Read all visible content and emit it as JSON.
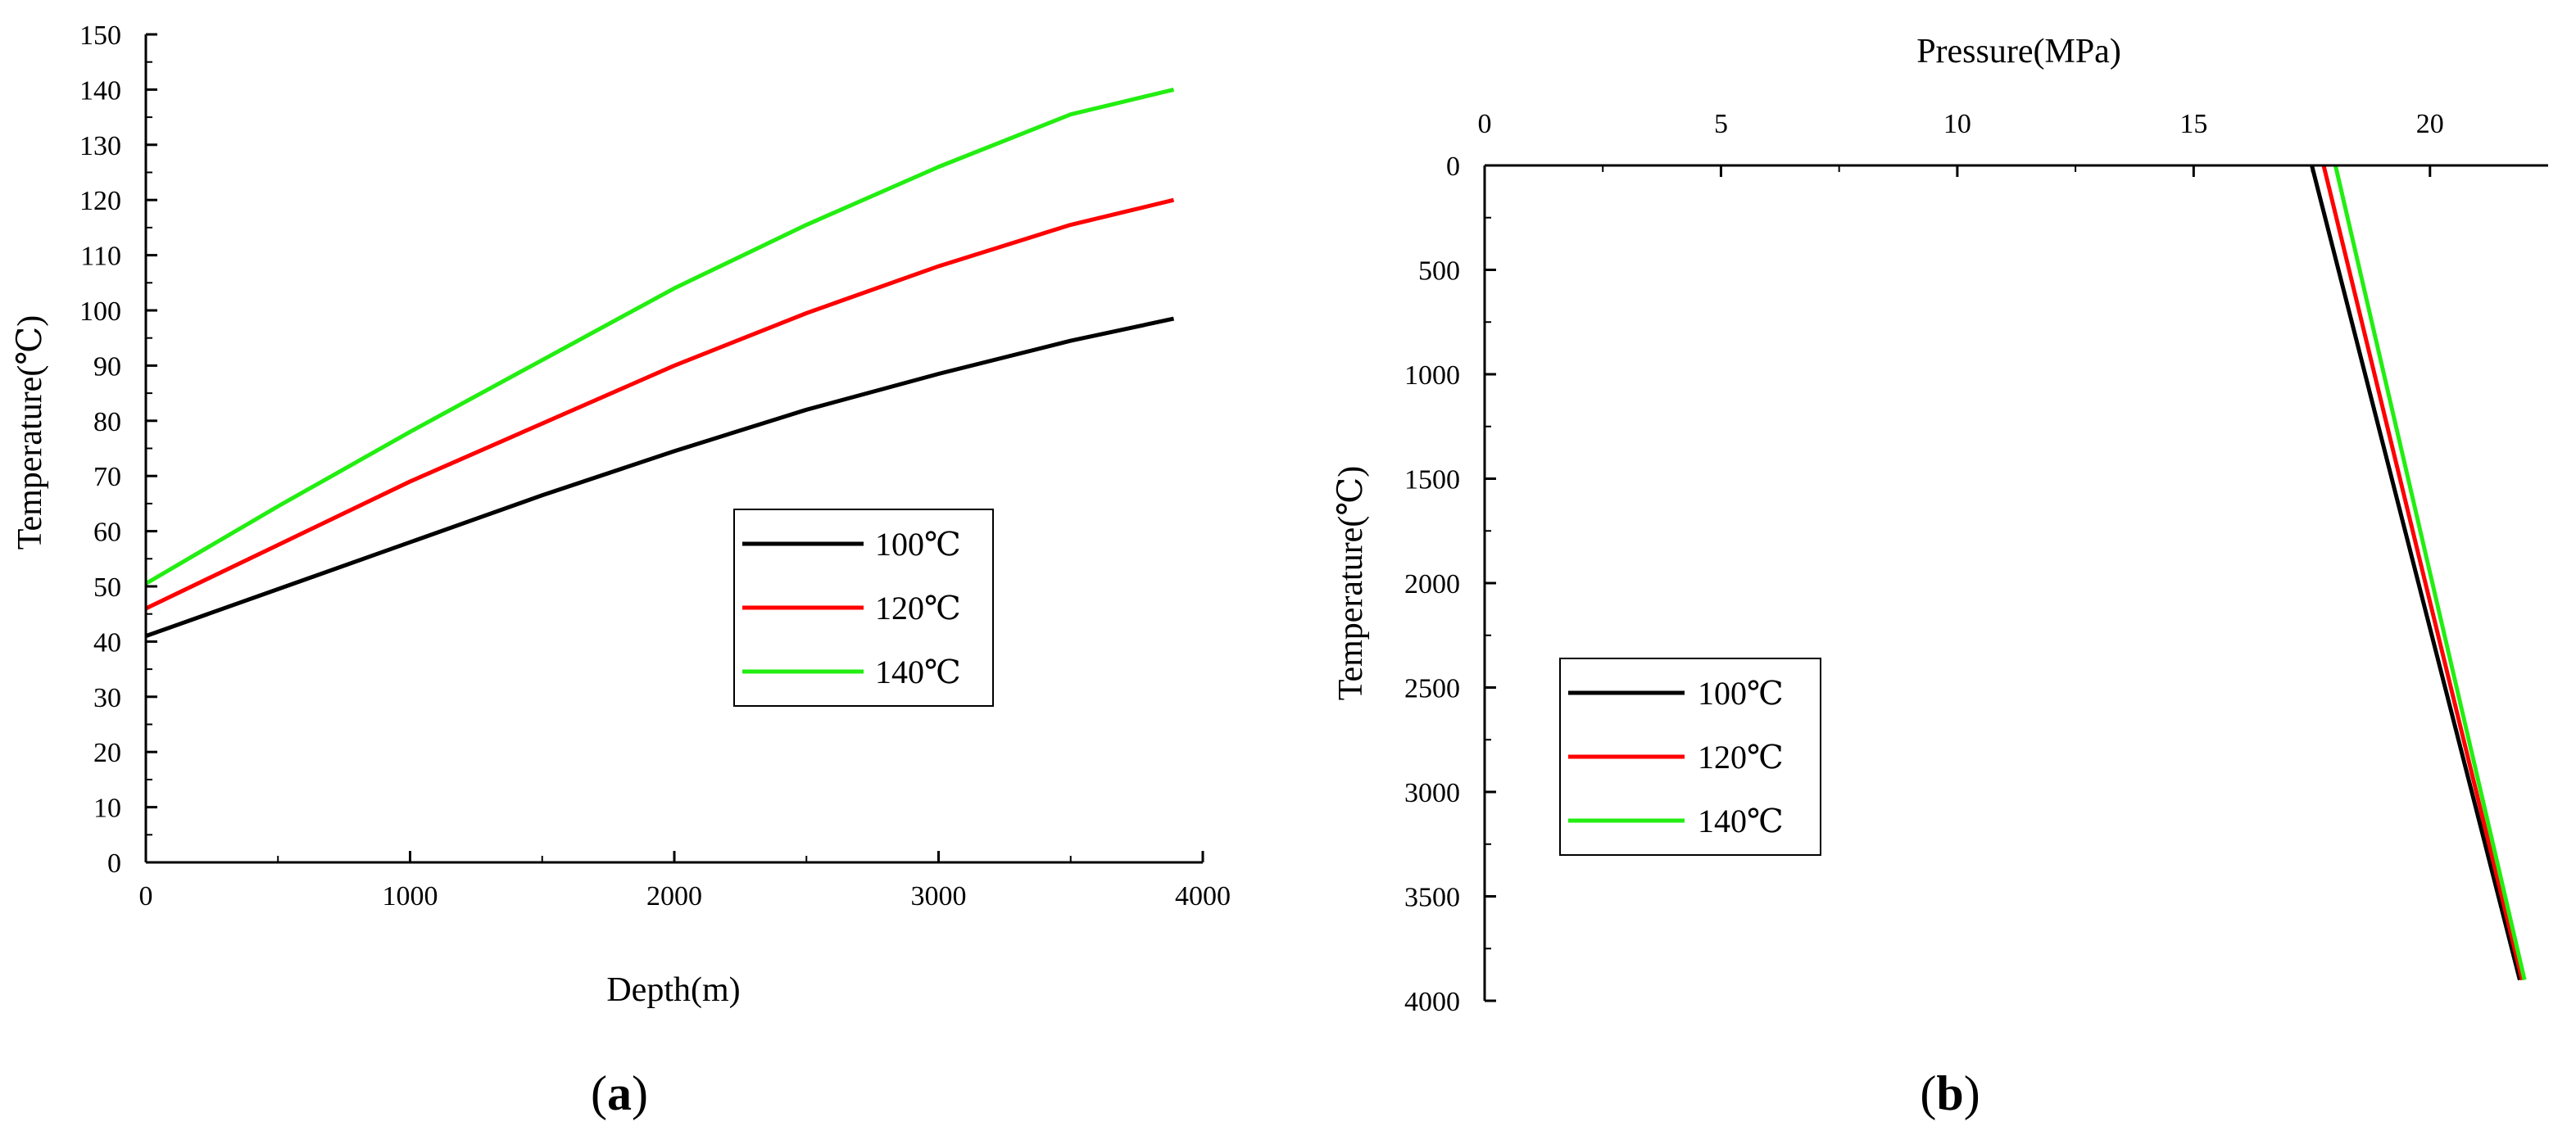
{
  "colors": {
    "black": "#000000",
    "red": "#ff0000",
    "green": "#22ee11"
  },
  "chart_data": [
    {
      "panel_label": "(a)",
      "panel_letter": "a",
      "type": "line",
      "xlabel": "Depth(m)",
      "ylabel": "Temperature(℃)",
      "xlim": [
        0,
        4000
      ],
      "ylim": [
        0,
        150
      ],
      "xticks": [
        "0",
        "1000",
        "2000",
        "3000",
        "4000"
      ],
      "yticks": [
        "0",
        "10",
        "20",
        "30",
        "40",
        "50",
        "60",
        "70",
        "80",
        "90",
        "100",
        "110",
        "120",
        "130",
        "140",
        "150"
      ],
      "legend_position": "center-right",
      "series": [
        {
          "name": "100℃",
          "color": "#000000",
          "x": [
            0,
            500,
            1000,
            1500,
            2000,
            2500,
            3000,
            3500,
            3890
          ],
          "y": [
            41,
            49.5,
            58,
            66.5,
            74.5,
            82,
            88.5,
            94.5,
            98.5
          ]
        },
        {
          "name": "120℃",
          "color": "#ff0000",
          "x": [
            0,
            500,
            1000,
            1500,
            2000,
            2500,
            3000,
            3500,
            3890
          ],
          "y": [
            46,
            57.5,
            69,
            79.5,
            90,
            99.5,
            108,
            115.5,
            120
          ]
        },
        {
          "name": "140℃",
          "color": "#22ee11",
          "x": [
            0,
            500,
            1000,
            1500,
            2000,
            2500,
            3000,
            3500,
            3890
          ],
          "y": [
            50.5,
            64.5,
            78,
            91,
            104,
            115.5,
            126,
            135.5,
            140
          ]
        }
      ]
    },
    {
      "panel_label": "(b)",
      "panel_letter": "b",
      "type": "line",
      "xlabel": "Pressure(MPa)",
      "ylabel": "Temperature(℃)",
      "xlim": [
        0,
        22.5
      ],
      "ylim": [
        0,
        4000
      ],
      "xticks": [
        "0",
        "5",
        "10",
        "15",
        "20"
      ],
      "yticks": [
        "0",
        "500",
        "1000",
        "1500",
        "2000",
        "2500",
        "3000",
        "3500",
        "4000"
      ],
      "x_axis_position": "top",
      "y_axis_inverted": true,
      "legend_position": "center-left",
      "series": [
        {
          "name": "100℃",
          "color": "#000000",
          "x": [
            17.5,
            21.9
          ],
          "y": [
            0,
            3900
          ]
        },
        {
          "name": "120℃",
          "color": "#ff0000",
          "x": [
            17.75,
            21.95
          ],
          "y": [
            0,
            3900
          ]
        },
        {
          "name": "140℃",
          "color": "#22ee11",
          "x": [
            18.0,
            22.0
          ],
          "y": [
            0,
            3900
          ]
        }
      ]
    }
  ]
}
